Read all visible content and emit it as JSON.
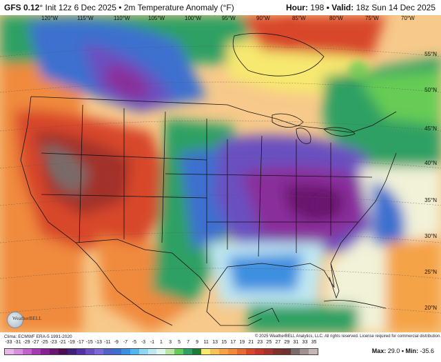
{
  "header": {
    "model": "GFS 0.12",
    "model_suffix": "° Init 12z 6 Dec 2025 • 2m Temperature Anomaly (°F)",
    "hour_label": "Hour:",
    "hour_value": "198",
    "valid_label": "• Valid:",
    "valid_value": "18z Sun 14 Dec 2025"
  },
  "map": {
    "lon_ticks": [
      "120°W",
      "115°W",
      "110°W",
      "105°W",
      "100°W",
      "95°W",
      "90°W",
      "85°W",
      "80°W",
      "75°W",
      "70°W"
    ],
    "lat_ticks": [
      "55°N",
      "50°N",
      "45°N",
      "40°N",
      "35°N",
      "30°N",
      "25°N",
      "20°N"
    ],
    "colors": {
      "extreme_warm": "#7a6a68",
      "very_warm": "#a3332a",
      "warm": "#d8462b",
      "mild_warm": "#f08a3c",
      "slight_warm": "#f7c15a",
      "neutral": "#f2f2d8",
      "slight_cool": "#66cc55",
      "cool": "#2fa063",
      "colder": "#3d6fcf",
      "cold": "#6b4fc0",
      "very_cold": "#8a2d9b",
      "extreme_cold": "#6a1470",
      "ocean_cool": "#bfe7f2"
    }
  },
  "footer": {
    "clim": "Clima: ECMWF ERA-5 1991-2020",
    "copyright": "© 2025 WeatherBELL Analytics, LLC. All rights reserved. License required for commercial distribution.",
    "logo_text": "WeatherBELL",
    "max_label": "Max:",
    "max_value": "29.0",
    "min_label": "• Min:",
    "min_value": "-35.6"
  },
  "legend": {
    "labels": [
      "-33",
      "-31",
      "-29",
      "-27",
      "-25",
      "-23",
      "-21",
      "-19",
      "-17",
      "-15",
      "-13",
      "-11",
      "-9",
      "-7",
      "-5",
      "-3",
      "-1",
      "1",
      "3",
      "5",
      "7",
      "9",
      "11",
      "13",
      "15",
      "17",
      "19",
      "21",
      "23",
      "25",
      "27",
      "29",
      "31",
      "33",
      "35"
    ],
    "colors": [
      "#e7b6e9",
      "#d98fdb",
      "#c261c9",
      "#a43bb0",
      "#872096",
      "#6a1470",
      "#4b0b55",
      "#3e1f7a",
      "#5131a3",
      "#6b4fc0",
      "#7d6ad4",
      "#4f63c9",
      "#3d6fcf",
      "#3d8fe0",
      "#52b5ec",
      "#8fd6f2",
      "#bfe7f2",
      "#dff4ea",
      "#bde6a6",
      "#66cc55",
      "#2fa063",
      "#1e7a3b",
      "#f7e870",
      "#f7c15a",
      "#f5a347",
      "#f08a3c",
      "#e96a31",
      "#d8462b",
      "#c3372a",
      "#a3332a",
      "#82302c",
      "#6d3431",
      "#7a6a68",
      "#a09090",
      "#c6b5b5"
    ]
  }
}
